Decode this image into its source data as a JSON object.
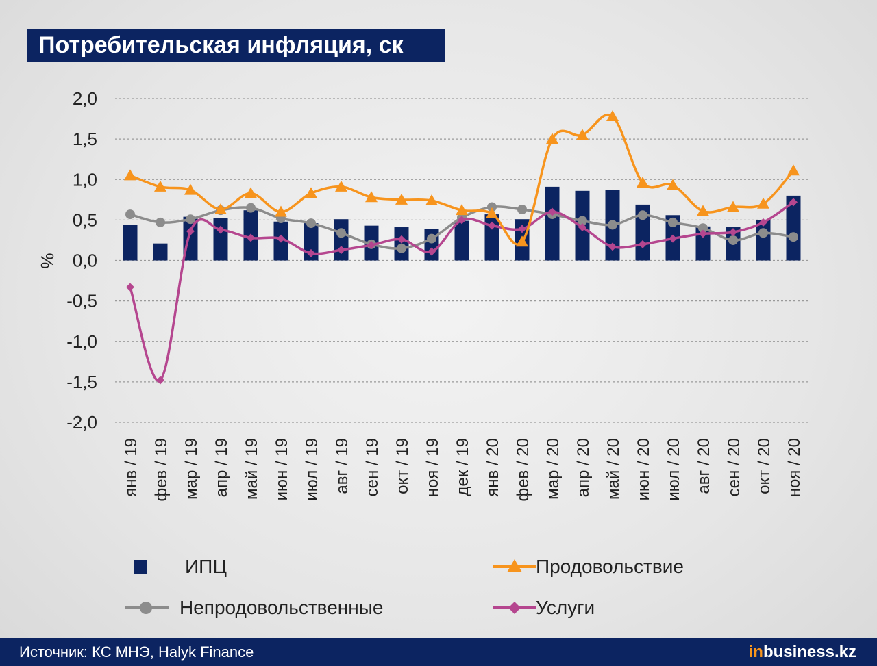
{
  "title": "Потребительская инфляция, ск",
  "source": "Источник: КС МНЭ, Halyk Finance",
  "logo": {
    "in": "in",
    "rest": "business.kz"
  },
  "colors": {
    "title_bg": "#0c2461",
    "cpi": "#0c2461",
    "food": "#f7941d",
    "nonfood": "#8c8c8c",
    "services": "#b5468f"
  },
  "chart_data": {
    "type": "bar+line",
    "ylabel": "%",
    "ylim": [
      -2.0,
      2.0
    ],
    "yticks": [
      "2,0",
      "1,5",
      "1,0",
      "0,5",
      "0,0",
      "-0,5",
      "-1,0",
      "-1,5",
      "-2,0"
    ],
    "ytick_values": [
      2.0,
      1.5,
      1.0,
      0.5,
      0.0,
      -0.5,
      -1.0,
      -1.5,
      -2.0
    ],
    "grid": true,
    "legend_position": "bottom",
    "categories": [
      "янв / 19",
      "фев / 19",
      "мар / 19",
      "апр / 19",
      "май / 19",
      "июн / 19",
      "июл / 19",
      "авг / 19",
      "сен / 19",
      "окт / 19",
      "ноя / 19",
      "дек / 19",
      "янв / 20",
      "фев / 20",
      "мар / 20",
      "апр / 20",
      "май / 20",
      "июн / 20",
      "июл / 20",
      "авг / 20",
      "сен / 20",
      "окт / 20",
      "ноя / 20"
    ],
    "series": [
      {
        "name": "ИПЦ",
        "type": "bar",
        "color": "#0c2461",
        "values": [
          0.44,
          0.21,
          0.54,
          0.52,
          0.62,
          0.48,
          0.46,
          0.51,
          0.43,
          0.41,
          0.39,
          0.49,
          0.57,
          0.51,
          0.91,
          0.86,
          0.87,
          0.69,
          0.56,
          0.42,
          0.41,
          0.5,
          0.8
        ]
      },
      {
        "name": "Продовольствие",
        "type": "line",
        "marker": "triangle",
        "color": "#f7941d",
        "values": [
          1.05,
          0.91,
          0.87,
          0.63,
          0.83,
          0.6,
          0.83,
          0.91,
          0.78,
          0.75,
          0.74,
          0.62,
          0.58,
          0.23,
          1.5,
          1.55,
          1.78,
          0.96,
          0.93,
          0.61,
          0.66,
          0.7,
          1.11
        ]
      },
      {
        "name": "Непродовольственные",
        "type": "line",
        "marker": "circle",
        "color": "#8c8c8c",
        "values": [
          0.57,
          0.47,
          0.51,
          0.62,
          0.65,
          0.52,
          0.46,
          0.34,
          0.2,
          0.15,
          0.27,
          0.53,
          0.66,
          0.63,
          0.57,
          0.49,
          0.44,
          0.56,
          0.47,
          0.4,
          0.25,
          0.34,
          0.29
        ]
      },
      {
        "name": "Услуги",
        "type": "line",
        "marker": "diamond",
        "color": "#b5468f",
        "values": [
          -0.33,
          -1.48,
          0.36,
          0.38,
          0.28,
          0.27,
          0.09,
          0.13,
          0.19,
          0.26,
          0.11,
          0.5,
          0.43,
          0.39,
          0.6,
          0.41,
          0.17,
          0.2,
          0.27,
          0.33,
          0.35,
          0.47,
          0.72
        ]
      }
    ]
  }
}
